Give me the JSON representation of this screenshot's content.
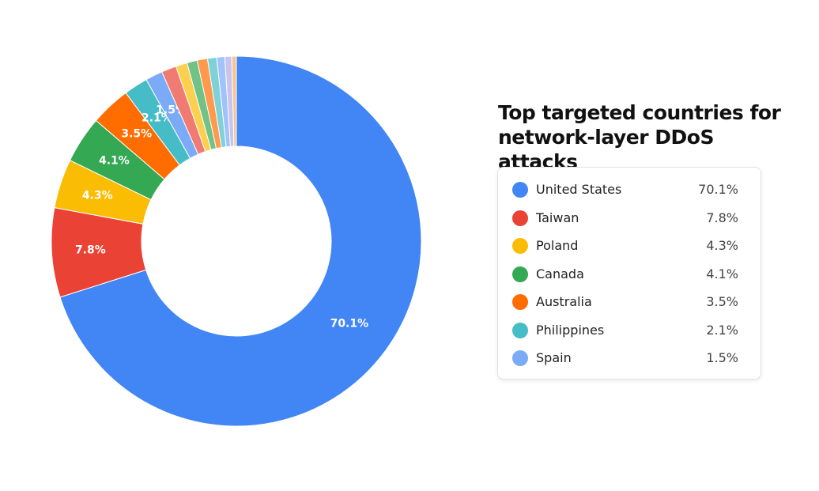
{
  "chart_data": {
    "type": "donut",
    "title": "Top targeted countries for network-layer DDoS attacks",
    "categories": [
      "United States",
      "Taiwan",
      "Poland",
      "Canada",
      "Australia",
      "Philippines",
      "Spain",
      null,
      null,
      null,
      null,
      null,
      null,
      null,
      null
    ],
    "values": [
      70.1,
      7.8,
      4.3,
      4.1,
      3.5,
      2.1,
      1.5,
      1.3,
      1.0,
      0.9,
      0.9,
      0.8,
      0.7,
      0.6,
      0.4
    ],
    "value_labels": [
      "70.1%",
      "7.8%",
      "4.3%",
      "4.1%",
      "3.5%",
      "2.1%",
      "1.5%",
      null,
      null,
      null,
      null,
      null,
      null,
      null,
      null
    ],
    "colors": [
      "#4285f4",
      "#ea4335",
      "#fbbc04",
      "#34a853",
      "#ff6d01",
      "#46bdc6",
      "#7baaf7",
      "#f07b72",
      "#fcd04f",
      "#71c287",
      "#ff994d",
      "#7ed1d7",
      "#a1c2fa",
      "#c9c3f0",
      "#f6c48f"
    ]
  }
}
